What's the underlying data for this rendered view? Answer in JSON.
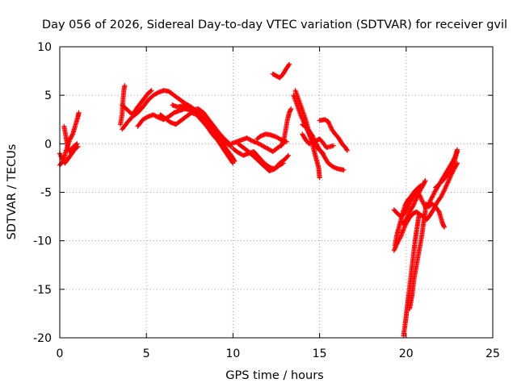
{
  "chart_data": {
    "type": "scatter",
    "title": "Day 056 of 2026, Sidereal Day-to-day VTEC variation (SDTVAR) for receiver gvil",
    "xlabel": "GPS time / hours",
    "ylabel": "SDTVAR / TECUs",
    "xlim": [
      0,
      25
    ],
    "ylim": [
      -20,
      10
    ],
    "xticks": [
      "0",
      "5",
      "10",
      "15",
      "20",
      "25"
    ],
    "yticks": [
      "10",
      "5",
      "0",
      "-5",
      "-10",
      "-15",
      "-20"
    ],
    "grid": true,
    "legend": "none",
    "series_color": "#ff0000",
    "marker": "plus",
    "segments": [
      [
        [
          0.0,
          -1.0
        ],
        [
          0.15,
          -1.6
        ],
        [
          0.3,
          -2.0
        ],
        [
          0.5,
          -1.5
        ],
        [
          0.7,
          -1.0
        ],
        [
          0.9,
          -0.5
        ],
        [
          1.05,
          -0.3
        ]
      ],
      [
        [
          0.0,
          -2.2
        ],
        [
          0.2,
          -1.8
        ],
        [
          0.35,
          -0.8
        ],
        [
          0.5,
          0.0
        ],
        [
          0.6,
          0.5
        ],
        [
          0.75,
          1.0
        ],
        [
          0.85,
          1.6
        ],
        [
          0.95,
          2.2
        ],
        [
          1.05,
          2.8
        ],
        [
          1.1,
          3.2
        ]
      ],
      [
        [
          0.25,
          1.8
        ],
        [
          0.35,
          0.8
        ],
        [
          0.45,
          -0.3
        ],
        [
          0.55,
          -0.8
        ],
        [
          0.7,
          -0.5
        ],
        [
          0.85,
          -0.2
        ],
        [
          1.0,
          0.0
        ]
      ],
      [
        [
          3.5,
          2.0
        ],
        [
          3.6,
          3.0
        ],
        [
          3.65,
          4.5
        ],
        [
          3.7,
          5.5
        ],
        [
          3.75,
          6.0
        ]
      ],
      [
        [
          3.6,
          1.5
        ],
        [
          3.9,
          2.2
        ],
        [
          4.2,
          2.8
        ],
        [
          4.5,
          3.2
        ],
        [
          4.8,
          3.8
        ],
        [
          5.1,
          4.5
        ],
        [
          5.4,
          5.0
        ],
        [
          5.7,
          5.3
        ],
        [
          6.0,
          5.5
        ],
        [
          6.3,
          5.4
        ],
        [
          6.6,
          5.0
        ],
        [
          6.9,
          4.6
        ],
        [
          7.2,
          4.2
        ],
        [
          7.5,
          3.9
        ],
        [
          7.8,
          3.5
        ],
        [
          8.1,
          3.0
        ],
        [
          8.4,
          2.4
        ],
        [
          8.7,
          1.8
        ],
        [
          9.0,
          1.2
        ],
        [
          9.3,
          0.6
        ],
        [
          9.6,
          0.1
        ],
        [
          9.9,
          -0.3
        ]
      ],
      [
        [
          3.6,
          4.0
        ],
        [
          3.9,
          3.5
        ],
        [
          4.2,
          3.0
        ],
        [
          4.5,
          3.8
        ],
        [
          4.8,
          4.5
        ],
        [
          5.1,
          5.2
        ],
        [
          5.3,
          5.5
        ]
      ],
      [
        [
          4.5,
          1.8
        ],
        [
          4.8,
          2.5
        ],
        [
          5.1,
          2.8
        ],
        [
          5.4,
          3.0
        ],
        [
          5.7,
          2.7
        ],
        [
          6.0,
          2.5
        ],
        [
          6.3,
          2.8
        ],
        [
          6.6,
          3.2
        ],
        [
          6.9,
          3.4
        ],
        [
          7.2,
          3.6
        ],
        [
          7.5,
          3.5
        ],
        [
          7.8,
          3.2
        ],
        [
          8.1,
          2.8
        ],
        [
          8.4,
          2.0
        ],
        [
          8.7,
          1.4
        ],
        [
          9.0,
          0.9
        ],
        [
          9.3,
          0.3
        ],
        [
          9.6,
          -0.5
        ],
        [
          9.9,
          -1.2
        ],
        [
          10.1,
          -1.8
        ]
      ],
      [
        [
          5.8,
          3.0
        ],
        [
          6.1,
          2.6
        ],
        [
          6.4,
          2.2
        ],
        [
          6.7,
          2.0
        ],
        [
          7.0,
          2.4
        ],
        [
          7.3,
          2.8
        ],
        [
          7.6,
          3.2
        ],
        [
          7.9,
          3.0
        ],
        [
          8.2,
          2.4
        ],
        [
          8.5,
          1.8
        ],
        [
          8.8,
          1.0
        ],
        [
          9.1,
          0.4
        ],
        [
          9.4,
          -0.4
        ],
        [
          9.7,
          -1.2
        ],
        [
          10.0,
          -2.0
        ]
      ],
      [
        [
          6.5,
          4.0
        ],
        [
          6.8,
          3.8
        ],
        [
          7.1,
          3.9
        ],
        [
          7.4,
          3.8
        ],
        [
          7.7,
          3.5
        ],
        [
          8.0,
          3.6
        ],
        [
          8.3,
          3.2
        ],
        [
          8.6,
          2.5
        ],
        [
          8.9,
          1.8
        ],
        [
          9.2,
          1.1
        ],
        [
          9.5,
          0.5
        ],
        [
          9.8,
          0.0
        ]
      ],
      [
        [
          9.9,
          0.0
        ],
        [
          10.2,
          0.2
        ],
        [
          10.5,
          0.4
        ],
        [
          10.8,
          0.6
        ],
        [
          11.1,
          0.3
        ],
        [
          11.4,
          0.1
        ],
        [
          11.7,
          -0.2
        ],
        [
          12.0,
          -0.5
        ],
        [
          12.3,
          -0.8
        ],
        [
          12.6,
          -0.4
        ],
        [
          12.9,
          0.0
        ]
      ],
      [
        [
          10.0,
          -0.5
        ],
        [
          10.3,
          -0.9
        ],
        [
          10.6,
          -1.2
        ],
        [
          10.9,
          -1.0
        ],
        [
          11.2,
          -0.8
        ],
        [
          11.5,
          -1.4
        ],
        [
          11.8,
          -2.0
        ],
        [
          12.1,
          -2.4
        ],
        [
          12.4,
          -2.6
        ],
        [
          12.7,
          -2.2
        ],
        [
          12.9,
          -2.0
        ]
      ],
      [
        [
          10.3,
          0.0
        ],
        [
          10.6,
          -0.4
        ],
        [
          10.9,
          -0.8
        ],
        [
          11.2,
          -1.3
        ],
        [
          11.5,
          -1.8
        ],
        [
          11.8,
          -2.3
        ],
        [
          12.1,
          -2.8
        ],
        [
          12.4,
          -2.6
        ],
        [
          12.7,
          -2.0
        ],
        [
          13.0,
          -1.6
        ],
        [
          13.2,
          -1.2
        ]
      ],
      [
        [
          11.4,
          0.5
        ],
        [
          11.6,
          0.8
        ],
        [
          11.9,
          1.0
        ],
        [
          12.2,
          0.9
        ],
        [
          12.5,
          0.7
        ],
        [
          12.8,
          0.4
        ],
        [
          13.1,
          0.2
        ]
      ],
      [
        [
          12.3,
          7.2
        ],
        [
          12.5,
          7.0
        ],
        [
          12.7,
          6.8
        ],
        [
          12.9,
          7.2
        ],
        [
          13.1,
          7.8
        ],
        [
          13.25,
          8.2
        ]
      ],
      [
        [
          12.8,
          -0.2
        ],
        [
          12.95,
          0.5
        ],
        [
          13.05,
          1.5
        ],
        [
          13.15,
          2.5
        ],
        [
          13.25,
          3.2
        ],
        [
          13.35,
          3.6
        ]
      ],
      [
        [
          13.6,
          5.5
        ],
        [
          13.8,
          4.5
        ],
        [
          14.0,
          3.5
        ],
        [
          14.2,
          2.5
        ],
        [
          14.35,
          1.5
        ],
        [
          14.5,
          0.5
        ],
        [
          14.65,
          -0.5
        ],
        [
          14.8,
          -1.5
        ],
        [
          14.95,
          -2.5
        ],
        [
          15.0,
          -3.5
        ]
      ],
      [
        [
          13.5,
          5.0
        ],
        [
          13.7,
          4.0
        ],
        [
          13.9,
          3.0
        ],
        [
          14.1,
          2.2
        ],
        [
          14.3,
          1.4
        ],
        [
          14.5,
          0.6
        ],
        [
          14.7,
          0.0
        ],
        [
          14.9,
          -0.5
        ],
        [
          15.1,
          -0.8
        ],
        [
          15.3,
          -1.4
        ],
        [
          15.5,
          -2.0
        ],
        [
          15.8,
          -2.4
        ],
        [
          16.1,
          -2.6
        ],
        [
          16.4,
          -2.7
        ]
      ],
      [
        [
          14.0,
          1.0
        ],
        [
          14.2,
          0.4
        ],
        [
          14.4,
          0.0
        ],
        [
          14.6,
          0.2
        ],
        [
          14.8,
          0.3
        ],
        [
          15.0,
          0.5
        ],
        [
          15.2,
          0.1
        ],
        [
          15.4,
          -0.4
        ],
        [
          15.6,
          -0.3
        ],
        [
          15.8,
          -0.2
        ]
      ],
      [
        [
          15.0,
          2.4
        ],
        [
          15.3,
          2.5
        ],
        [
          15.5,
          2.3
        ],
        [
          15.7,
          1.5
        ],
        [
          15.9,
          1.0
        ],
        [
          16.1,
          0.6
        ],
        [
          16.3,
          0.0
        ],
        [
          16.5,
          -0.4
        ],
        [
          16.6,
          -0.7
        ]
      ],
      [
        [
          14.0,
          2.0
        ],
        [
          14.3,
          1.6
        ],
        [
          14.6,
          0.8
        ],
        [
          14.8,
          0.0
        ],
        [
          15.0,
          -0.6
        ],
        [
          15.2,
          -1.0
        ]
      ],
      [
        [
          19.35,
          -10.5
        ],
        [
          19.45,
          -9.5
        ],
        [
          19.55,
          -8.8
        ],
        [
          19.65,
          -8.2
        ],
        [
          19.75,
          -7.5
        ],
        [
          19.85,
          -6.8
        ],
        [
          19.95,
          -6.3
        ],
        [
          20.1,
          -5.8
        ],
        [
          20.25,
          -5.5
        ],
        [
          20.45,
          -5.0
        ],
        [
          20.65,
          -4.6
        ],
        [
          20.85,
          -4.3
        ]
      ],
      [
        [
          19.3,
          -11.0
        ],
        [
          19.5,
          -10.2
        ],
        [
          19.7,
          -9.5
        ],
        [
          19.85,
          -8.8
        ],
        [
          20.0,
          -8.2
        ],
        [
          20.2,
          -7.6
        ],
        [
          20.4,
          -7.2
        ],
        [
          20.6,
          -7.0
        ],
        [
          20.8,
          -7.3
        ],
        [
          21.0,
          -7.5
        ],
        [
          21.2,
          -7.8
        ],
        [
          21.4,
          -7.3
        ],
        [
          21.6,
          -6.7
        ],
        [
          21.8,
          -6.0
        ],
        [
          22.0,
          -5.5
        ],
        [
          22.2,
          -4.8
        ],
        [
          22.4,
          -4.0
        ],
        [
          22.6,
          -3.2
        ],
        [
          22.8,
          -2.5
        ],
        [
          22.95,
          -2.0
        ]
      ],
      [
        [
          19.3,
          -6.8
        ],
        [
          19.5,
          -7.2
        ],
        [
          19.7,
          -7.5
        ],
        [
          19.9,
          -7.2
        ],
        [
          20.1,
          -6.5
        ],
        [
          20.3,
          -5.8
        ],
        [
          20.5,
          -5.2
        ],
        [
          20.7,
          -5.0
        ],
        [
          20.9,
          -5.8
        ],
        [
          21.1,
          -6.5
        ],
        [
          21.3,
          -6.2
        ],
        [
          21.5,
          -5.5
        ],
        [
          21.7,
          -4.8
        ],
        [
          21.9,
          -4.2
        ],
        [
          22.1,
          -3.6
        ],
        [
          22.3,
          -3.0
        ],
        [
          22.5,
          -2.4
        ],
        [
          22.7,
          -1.8
        ],
        [
          22.85,
          -1.2
        ],
        [
          22.95,
          -0.6
        ]
      ],
      [
        [
          19.85,
          -19.8
        ],
        [
          19.95,
          -18.5
        ],
        [
          20.05,
          -17.0
        ],
        [
          20.15,
          -15.5
        ],
        [
          20.25,
          -14.0
        ],
        [
          20.35,
          -12.5
        ],
        [
          20.45,
          -11.0
        ],
        [
          20.55,
          -9.6
        ],
        [
          20.65,
          -8.4
        ],
        [
          20.75,
          -7.2
        ]
      ],
      [
        [
          20.2,
          -17.0
        ],
        [
          20.35,
          -15.5
        ],
        [
          20.45,
          -14.0
        ],
        [
          20.6,
          -12.5
        ],
        [
          20.75,
          -11.0
        ],
        [
          20.9,
          -9.5
        ],
        [
          21.0,
          -8.2
        ],
        [
          21.1,
          -7.0
        ],
        [
          21.15,
          -6.2
        ]
      ],
      [
        [
          21.3,
          -6.5
        ],
        [
          21.5,
          -6.2
        ],
        [
          21.7,
          -6.5
        ],
        [
          21.9,
          -7.0
        ],
        [
          22.0,
          -7.6
        ],
        [
          22.1,
          -8.2
        ],
        [
          22.2,
          -8.6
        ]
      ],
      [
        [
          21.7,
          -4.5
        ],
        [
          21.9,
          -4.2
        ],
        [
          22.1,
          -3.8
        ],
        [
          22.3,
          -3.4
        ],
        [
          22.5,
          -3.0
        ],
        [
          22.7,
          -2.2
        ],
        [
          22.85,
          -1.4
        ],
        [
          22.95,
          -0.8
        ]
      ],
      [
        [
          19.8,
          -8.2
        ],
        [
          20.0,
          -7.8
        ],
        [
          20.2,
          -7.0
        ],
        [
          20.4,
          -6.4
        ],
        [
          20.6,
          -5.6
        ],
        [
          20.8,
          -4.8
        ],
        [
          21.0,
          -4.2
        ],
        [
          21.1,
          -3.8
        ]
      ]
    ]
  }
}
